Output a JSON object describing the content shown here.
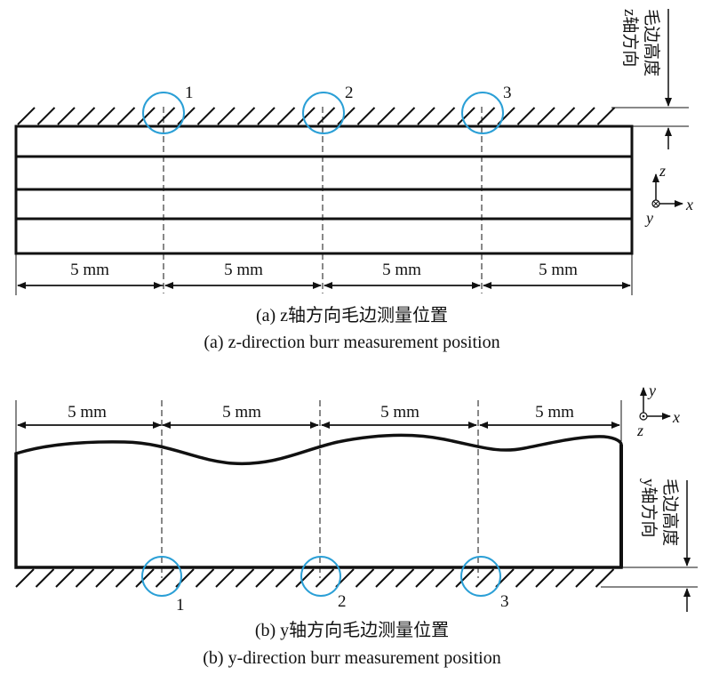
{
  "panel_a": {
    "caption_cn": "(a) z轴方向毛边测量位置",
    "caption_en": "(a) z-direction burr measurement position",
    "dimensions": [
      "5 mm",
      "5 mm",
      "5 mm",
      "5 mm"
    ],
    "points": [
      "1",
      "2",
      "3"
    ],
    "side_label": [
      "z轴方向",
      "毛边高度"
    ],
    "axes": {
      "up": "z",
      "right": "x",
      "down": "y"
    }
  },
  "panel_b": {
    "caption_cn": "(b) y轴方向毛边测量位置",
    "caption_en": "(b) y-direction burr measurement position",
    "dimensions": [
      "5 mm",
      "5 mm",
      "5 mm",
      "5 mm"
    ],
    "points": [
      "1",
      "2",
      "3"
    ],
    "side_label": [
      "y轴方向",
      "毛边高度"
    ],
    "axes": {
      "up": "y",
      "right": "x",
      "down": "z"
    }
  },
  "colors": {
    "line": "#111111",
    "circle": "#2a9fd6"
  }
}
